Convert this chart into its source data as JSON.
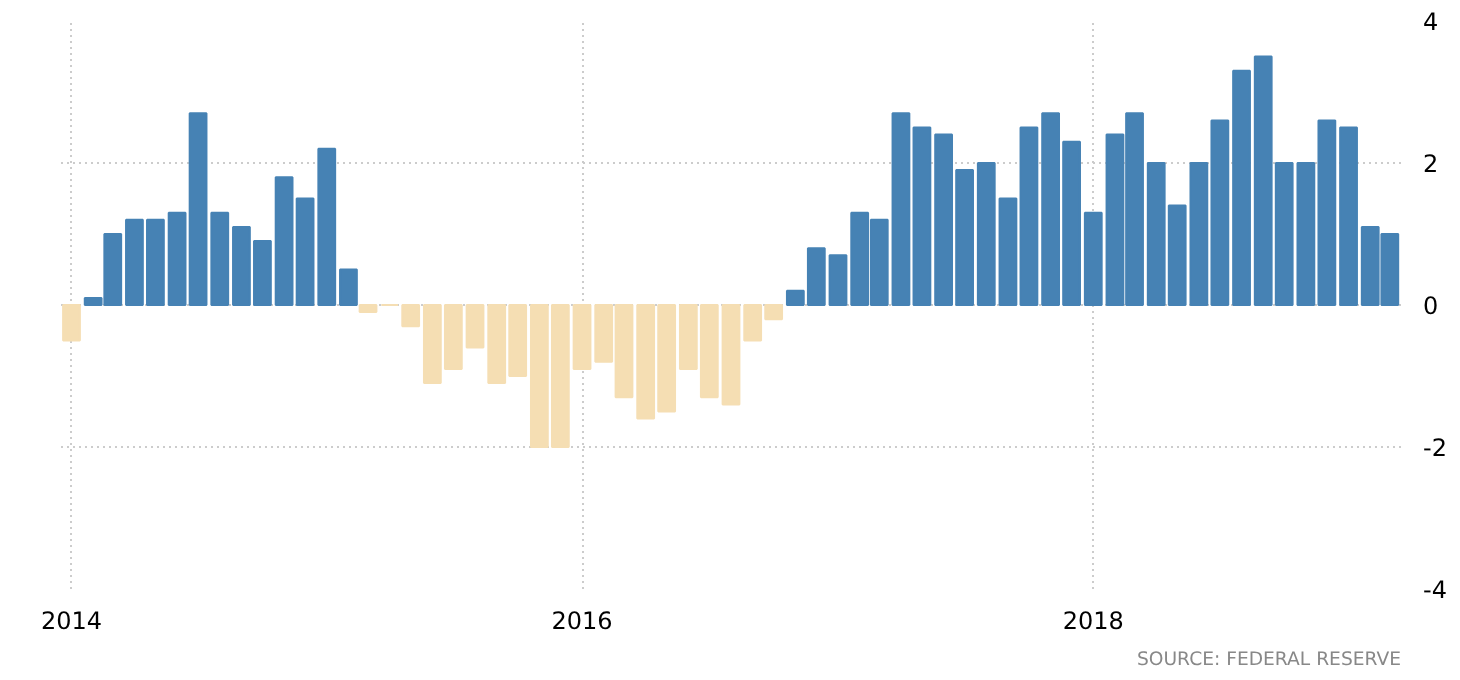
{
  "chart_data": {
    "type": "bar",
    "x": [
      "2014-01",
      "2014-02",
      "2014-03",
      "2014-04",
      "2014-05",
      "2014-06",
      "2014-07",
      "2014-08",
      "2014-09",
      "2014-10",
      "2014-11",
      "2014-12",
      "2015-01",
      "2015-02",
      "2015-03",
      "2015-04",
      "2015-05",
      "2015-06",
      "2015-07",
      "2015-08",
      "2015-09",
      "2015-10",
      "2015-11",
      "2015-12",
      "2016-01",
      "2016-02",
      "2016-03",
      "2016-04",
      "2016-05",
      "2016-06",
      "2016-07",
      "2016-08",
      "2016-09",
      "2016-10",
      "2016-11",
      "2016-12",
      "2017-01",
      "2017-02",
      "2017-03",
      "2017-04",
      "2017-05",
      "2017-06",
      "2017-07",
      "2017-08",
      "2017-09",
      "2017-10",
      "2017-11",
      "2017-12",
      "2018-01",
      "2018-02",
      "2018-03",
      "2018-04",
      "2018-05",
      "2018-06",
      "2018-07",
      "2018-08",
      "2018-09",
      "2018-10",
      "2018-11",
      "2018-12",
      "2019-01",
      "2019-02",
      "2019-03"
    ],
    "values": [
      -0.5,
      0.1,
      1.0,
      1.2,
      1.2,
      1.3,
      2.7,
      1.3,
      1.1,
      0.9,
      1.8,
      1.5,
      2.2,
      0.5,
      -0.1,
      0,
      -0.3,
      -1.1,
      -0.9,
      -0.6,
      -1.1,
      -1.0,
      -2.0,
      -2.0,
      -0.9,
      -0.8,
      -1.3,
      -1.6,
      -1.5,
      -0.9,
      -1.3,
      -1.4,
      -0.5,
      -0.2,
      0.2,
      0.8,
      0.7,
      1.3,
      1.2,
      2.7,
      2.5,
      2.4,
      1.9,
      2.0,
      1.5,
      2.5,
      2.7,
      2.3,
      1.3,
      2.4,
      2.7,
      2.0,
      1.4,
      2.0,
      2.6,
      3.3,
      3.5,
      2.0,
      2.0,
      2.6,
      2.5,
      1.1,
      1.0
    ],
    "colors": [
      "#f5deb3",
      "#4682b4",
      "#4682b4",
      "#4682b4",
      "#4682b4",
      "#4682b4",
      "#4682b4",
      "#4682b4",
      "#4682b4",
      "#4682b4",
      "#4682b4",
      "#4682b4",
      "#4682b4",
      "#4682b4",
      "#f5deb3",
      "#f5deb3",
      "#f5deb3",
      "#f5deb3",
      "#f5deb3",
      "#f5deb3",
      "#f5deb3",
      "#f5deb3",
      "#f5deb3",
      "#f5deb3",
      "#f5deb3",
      "#f5deb3",
      "#f5deb3",
      "#f5deb3",
      "#f5deb3",
      "#f5deb3",
      "#f5deb3",
      "#f5deb3",
      "#f5deb3",
      "#f5deb3",
      "#4682b4",
      "#4682b4",
      "#4682b4",
      "#4682b4",
      "#4682b4",
      "#4682b4",
      "#4682b4",
      "#4682b4",
      "#4682b4",
      "#4682b4",
      "#4682b4",
      "#4682b4",
      "#4682b4",
      "#4682b4",
      "#4682b4",
      "#4682b4",
      "#4682b4",
      "#4682b4",
      "#4682b4",
      "#4682b4",
      "#4682b4",
      "#4682b4",
      "#4682b4",
      "#4682b4",
      "#4682b4",
      "#4682b4",
      "#4682b4",
      "#4682b4",
      "#4682b4"
    ],
    "xlim": [
      "2013-12-17",
      "2019-03-17"
    ],
    "xticks": [
      "2014",
      "2016",
      "2018"
    ],
    "ylim": [
      -4,
      4
    ],
    "yticks": [
      -4,
      -2,
      0,
      2,
      4
    ],
    "grid": true,
    "annotations": [
      "SOURCE: FEDERAL RESERVE"
    ]
  }
}
